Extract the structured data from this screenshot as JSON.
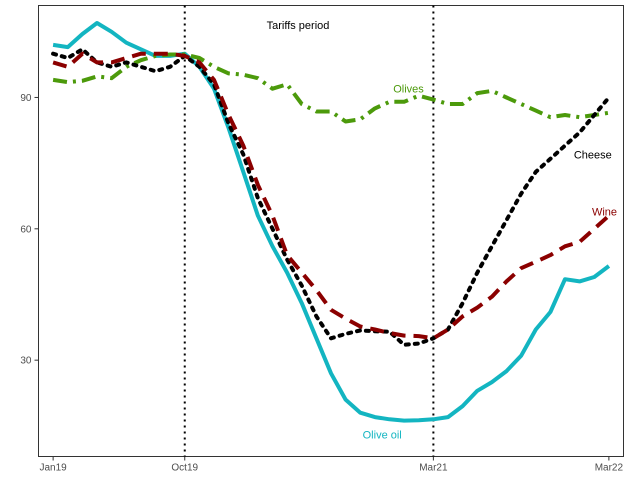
{
  "chart_data": {
    "type": "line",
    "title": "",
    "xlabel": "",
    "ylabel": "",
    "x_ticks": [
      "Jan19",
      "Oct19",
      "Mar21",
      "Mar22"
    ],
    "x_tick_index": [
      0,
      9,
      26,
      38
    ],
    "y_ticks": [
      30,
      60,
      90
    ],
    "xlim": [
      -1,
      39
    ],
    "ylim": [
      8,
      111
    ],
    "grid": false,
    "annotation": "Tariffs period",
    "vlines_index": [
      9,
      26
    ],
    "series": [
      {
        "name": "Olive oil",
        "color": "#13b5c1",
        "style": "solid",
        "label_index": 22.5,
        "label_value": 13,
        "values": [
          102,
          101.5,
          104.5,
          107,
          105,
          102.5,
          101,
          99.5,
          99.5,
          100,
          97,
          92,
          83,
          73,
          63,
          56,
          50,
          43,
          35,
          27,
          21,
          18,
          17,
          16.5,
          16.2,
          16.3,
          16.5,
          17,
          19.5,
          23,
          25,
          27.5,
          31,
          37,
          41,
          48.5,
          48,
          49,
          51.5
        ]
      },
      {
        "name": "Olives",
        "color": "#4c9a0b",
        "style": "dashdot",
        "label_index": 24.3,
        "label_value": 92,
        "values": [
          94,
          93.5,
          93.8,
          94.8,
          94.4,
          97,
          98.5,
          99.5,
          99.8,
          99.8,
          99,
          97,
          95.5,
          95.2,
          94.4,
          92,
          93,
          88.5,
          86.8,
          86.8,
          84.5,
          85,
          87.5,
          89,
          89,
          90.4,
          89.5,
          88.5,
          88.5,
          91,
          91.5,
          90,
          88.5,
          87,
          85.5,
          86,
          85.5,
          86,
          86.5
        ]
      },
      {
        "name": "Cheese",
        "color": "#000000",
        "style": "dotted",
        "label_index": 36.9,
        "label_value": 77,
        "values": [
          100,
          99,
          101,
          98,
          97,
          98,
          97,
          96,
          97,
          99.5,
          97,
          93,
          84,
          77,
          67,
          60,
          53,
          47,
          40,
          35,
          36,
          36.8,
          36.6,
          36.5,
          33.5,
          33.8,
          35,
          37,
          43,
          50,
          56,
          62,
          68,
          73,
          76,
          79,
          82,
          86,
          90
        ]
      },
      {
        "name": "Wine",
        "color": "#8b0000",
        "style": "dashed",
        "label_index": 37.7,
        "label_value": 64,
        "values": [
          98,
          97,
          100,
          98,
          98,
          99,
          100,
          100,
          100,
          99.5,
          98,
          94,
          86,
          79,
          70,
          63,
          54,
          50,
          46,
          41.5,
          39.5,
          37.7,
          37,
          36.2,
          35.6,
          35.5,
          35,
          37,
          40,
          42,
          44.5,
          48,
          51,
          52.5,
          54,
          56,
          57,
          60,
          63
        ]
      }
    ]
  }
}
